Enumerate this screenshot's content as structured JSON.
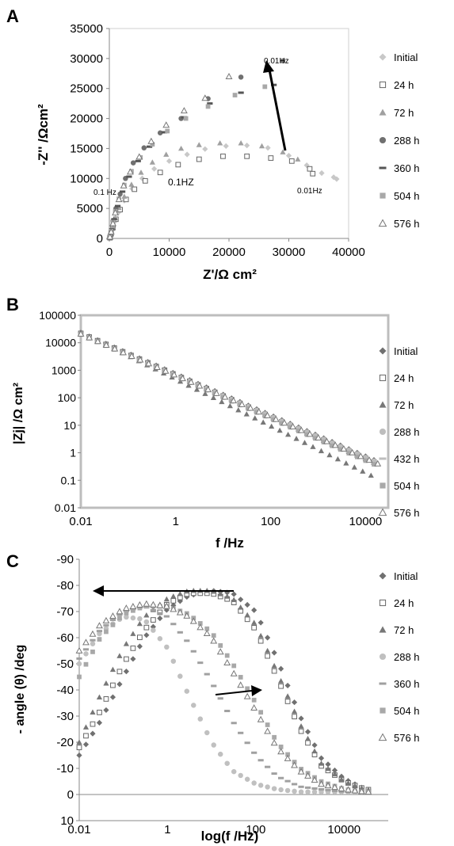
{
  "chart_data": [
    {
      "panel": "A",
      "type": "scatter",
      "xlabel": "Z'/Ω cm²",
      "ylabel": "-Z'' /Ωcm²",
      "xlim": [
        0,
        40000
      ],
      "ylim": [
        0,
        35000
      ],
      "x_ticks": [
        "0",
        "10000",
        "20000",
        "30000",
        "40000"
      ],
      "y_ticks": [
        "0",
        "5000",
        "10000",
        "15000",
        "20000",
        "25000",
        "30000",
        "35000"
      ],
      "grid": false,
      "legend": "right",
      "annotations": [
        "0.01Hz",
        "0.1 Hz",
        "0.1HZ",
        "0.01Hz"
      ],
      "series": [
        {
          "name": "Initial",
          "marker": "diamond-filled",
          "color": "#c8c8c8",
          "points": [
            [
              100,
              150
            ],
            [
              250,
              700
            ],
            [
              500,
              1600
            ],
            [
              900,
              2800
            ],
            [
              1500,
              4300
            ],
            [
              2500,
              6300
            ],
            [
              3800,
              8300
            ],
            [
              5500,
              10000
            ],
            [
              7500,
              11600
            ],
            [
              10000,
              12900
            ],
            [
              13000,
              14000
            ],
            [
              16000,
              14900
            ],
            [
              19500,
              15400
            ],
            [
              23000,
              15500
            ],
            [
              26500,
              15100
            ],
            [
              30000,
              13800
            ],
            [
              33000,
              12200
            ],
            [
              35500,
              10900
            ],
            [
              37500,
              10200
            ],
            [
              38000,
              9900
            ]
          ]
        },
        {
          "name": "24 h",
          "marker": "square-open",
          "color": "#666666",
          "points": [
            [
              100,
              120
            ],
            [
              300,
              800
            ],
            [
              600,
              1800
            ],
            [
              1100,
              3200
            ],
            [
              1800,
              4800
            ],
            [
              2800,
              6500
            ],
            [
              4200,
              8200
            ],
            [
              6000,
              9600
            ],
            [
              8500,
              11000
            ],
            [
              11500,
              12300
            ],
            [
              15000,
              13200
            ],
            [
              19000,
              13700
            ],
            [
              23000,
              13700
            ],
            [
              27000,
              13400
            ],
            [
              30500,
              12900
            ],
            [
              33500,
              11600
            ],
            [
              34000,
              10800
            ]
          ]
        },
        {
          "name": "72 h",
          "marker": "triangle-filled",
          "color": "#a0a0a0",
          "points": [
            [
              100,
              200
            ],
            [
              300,
              900
            ],
            [
              600,
              2000
            ],
            [
              1000,
              3400
            ],
            [
              1600,
              5100
            ],
            [
              2500,
              7000
            ],
            [
              3700,
              9000
            ],
            [
              5300,
              11000
            ],
            [
              7200,
              12700
            ],
            [
              9500,
              14000
            ],
            [
              12000,
              15000
            ],
            [
              15000,
              15600
            ],
            [
              18500,
              15900
            ],
            [
              22000,
              15900
            ],
            [
              25500,
              15400
            ],
            [
              29000,
              14400
            ],
            [
              31500,
              13200
            ]
          ]
        },
        {
          "name": "288 h",
          "marker": "circle-filled",
          "color": "#707070",
          "points": [
            [
              100,
              300
            ],
            [
              300,
              1300
            ],
            [
              600,
              2900
            ],
            [
              1100,
              5000
            ],
            [
              1800,
              7400
            ],
            [
              2700,
              10000
            ],
            [
              4000,
              12600
            ],
            [
              5800,
              15100
            ],
            [
              8500,
              17600
            ],
            [
              12000,
              20000
            ],
            [
              16500,
              23300
            ],
            [
              22000,
              26900
            ],
            [
              29000,
              29600
            ]
          ]
        },
        {
          "name": "360 h",
          "marker": "dash",
          "color": "#555555",
          "points": [
            [
              150,
              400
            ],
            [
              400,
              1500
            ],
            [
              800,
              3200
            ],
            [
              1400,
              5400
            ],
            [
              2200,
              7800
            ],
            [
              3300,
              10300
            ],
            [
              4800,
              12900
            ],
            [
              6700,
              15300
            ],
            [
              9200,
              17700
            ],
            [
              12500,
              20200
            ],
            [
              16800,
              22500
            ],
            [
              22000,
              24300
            ],
            [
              27500,
              25600
            ]
          ]
        },
        {
          "name": "504 h",
          "marker": "square-filled",
          "color": "#a8a8a8",
          "points": [
            [
              100,
              300
            ],
            [
              300,
              1200
            ],
            [
              600,
              2700
            ],
            [
              1000,
              4500
            ],
            [
              1600,
              6600
            ],
            [
              2500,
              8900
            ],
            [
              3700,
              11200
            ],
            [
              5200,
              13500
            ],
            [
              7200,
              15700
            ],
            [
              9700,
              17900
            ],
            [
              12800,
              20000
            ],
            [
              16500,
              22000
            ],
            [
              21000,
              23900
            ],
            [
              26000,
              25300
            ]
          ]
        },
        {
          "name": "576 h",
          "marker": "triangle-open",
          "color": "#777777",
          "points": [
            [
              100,
              250
            ],
            [
              300,
              1100
            ],
            [
              600,
              2500
            ],
            [
              1000,
              4300
            ],
            [
              1600,
              6500
            ],
            [
              2400,
              8800
            ],
            [
              3500,
              11100
            ],
            [
              5000,
              13600
            ],
            [
              7000,
              16200
            ],
            [
              9500,
              18900
            ],
            [
              12500,
              21300
            ],
            [
              16000,
              23400
            ],
            [
              20000,
              27000
            ]
          ]
        }
      ]
    },
    {
      "panel": "B",
      "type": "scatter",
      "xlabel": "f /Hz",
      "ylabel": "|Zj| /Ω cm²",
      "xscale": "log",
      "yscale": "log",
      "xlim": [
        0.01,
        30000
      ],
      "ylim": [
        0.01,
        100000
      ],
      "x_ticks": [
        "0.01",
        "1",
        "100",
        "10000"
      ],
      "y_ticks": [
        "0.01",
        "0.1",
        "1",
        "10",
        "100",
        "1000",
        "10000",
        "100000"
      ],
      "grid": false,
      "legend": "right",
      "series": [
        {
          "name": "Initial",
          "marker": "diamond-filled",
          "color": "#707070",
          "f_start": 0.01,
          "f_end": 15000,
          "z_start": 23000,
          "z_end": 0.55,
          "n": 36
        },
        {
          "name": "24 h",
          "marker": "square-open",
          "color": "#666666",
          "f_start": 0.01,
          "f_end": 15000,
          "z_start": 22000,
          "z_end": 0.45,
          "n": 36
        },
        {
          "name": "72 h",
          "marker": "triangle-filled",
          "color": "#777777",
          "f_start": 0.01,
          "f_end": 13000,
          "z_start": 24000,
          "z_end": 0.15,
          "n": 36
        },
        {
          "name": "288 h",
          "marker": "circle-filled",
          "color": "#bdbdbd",
          "f_start": 0.01,
          "f_end": 15000,
          "z_start": 21000,
          "z_end": 0.5,
          "n": 36
        },
        {
          "name": "432 h",
          "marker": "dash",
          "color": "#bdbdbd",
          "f_start": 0.01,
          "f_end": 15000,
          "z_start": 20000,
          "z_end": 0.42,
          "n": 36
        },
        {
          "name": "504 h",
          "marker": "square-filled",
          "color": "#a8a8a8",
          "f_start": 0.01,
          "f_end": 15000,
          "z_start": 20000,
          "z_end": 0.38,
          "n": 36
        },
        {
          "name": "576 h",
          "marker": "triangle-open",
          "color": "#777777",
          "f_start": 0.01,
          "f_end": 18000,
          "z_start": 21000,
          "z_end": 0.4,
          "n": 36
        }
      ]
    },
    {
      "panel": "C",
      "type": "scatter",
      "xlabel": "log(f /Hz)",
      "ylabel": "- angle (θ) /deg",
      "xscale": "log",
      "xlim": [
        0.01,
        100000
      ],
      "ylim": [
        10,
        -90
      ],
      "x_ticks": [
        "0.01",
        "1",
        "100",
        "10000"
      ],
      "y_ticks": [
        "-90",
        "-80",
        "-70",
        "-60",
        "-50",
        "-40",
        "-30",
        "-20",
        "-10",
        "0",
        "10"
      ],
      "grid": false,
      "legend": "right",
      "series": [
        {
          "name": "Initial",
          "marker": "diamond-filled",
          "color": "#707070",
          "curve": [
            [
              0.01,
              -15
            ],
            [
              0.03,
              -28
            ],
            [
              0.1,
              -45
            ],
            [
              0.3,
              -60
            ],
            [
              1,
              -71
            ],
            [
              3,
              -76
            ],
            [
              10,
              -78
            ],
            [
              30,
              -77
            ],
            [
              100,
              -70
            ],
            [
              300,
              -52
            ],
            [
              1000,
              -30
            ],
            [
              3000,
              -14
            ],
            [
              10000,
              -6
            ],
            [
              30000,
              -2
            ],
            [
              100000,
              -1
            ]
          ]
        },
        {
          "name": "24 h",
          "marker": "square-open",
          "color": "#666666",
          "curve": [
            [
              0.01,
              -18
            ],
            [
              0.03,
              -32
            ],
            [
              0.1,
              -50
            ],
            [
              0.3,
              -63
            ],
            [
              1,
              -73
            ],
            [
              3,
              -77
            ],
            [
              10,
              -77
            ],
            [
              30,
              -74
            ],
            [
              100,
              -63
            ],
            [
              300,
              -45
            ],
            [
              1000,
              -25
            ],
            [
              3000,
              -11
            ],
            [
              10000,
              -5
            ],
            [
              30000,
              -2
            ],
            [
              100000,
              -1
            ]
          ]
        },
        {
          "name": "72 h",
          "marker": "triangle-filled",
          "color": "#777777",
          "curve": [
            [
              0.01,
              -20
            ],
            [
              0.03,
              -38
            ],
            [
              0.1,
              -56
            ],
            [
              0.3,
              -68
            ],
            [
              1,
              -75
            ],
            [
              3,
              -78
            ],
            [
              10,
              -78
            ],
            [
              30,
              -75
            ],
            [
              100,
              -65
            ],
            [
              300,
              -47
            ],
            [
              1000,
              -27
            ],
            [
              3000,
              -12
            ],
            [
              10000,
              -5
            ],
            [
              30000,
              -2
            ],
            [
              100000,
              -1
            ]
          ]
        },
        {
          "name": "288 h",
          "marker": "circle-filled",
          "color": "#c0c0c0",
          "curve": [
            [
              0.01,
              -50
            ],
            [
              0.03,
              -62
            ],
            [
              0.1,
              -68
            ],
            [
              0.3,
              -67
            ],
            [
              1,
              -56
            ],
            [
              3,
              -38
            ],
            [
              10,
              -20
            ],
            [
              30,
              -9
            ],
            [
              100,
              -4
            ],
            [
              300,
              -2
            ],
            [
              1000,
              -1
            ],
            [
              3000,
              -1
            ],
            [
              10000,
              -1
            ],
            [
              30000,
              -1
            ],
            [
              100000,
              -1
            ]
          ]
        },
        {
          "name": "360 h",
          "marker": "dash",
          "color": "#a0a0a0",
          "curve": [
            [
              0.01,
              -52
            ],
            [
              0.03,
              -63
            ],
            [
              0.1,
              -70
            ],
            [
              0.3,
              -72
            ],
            [
              1,
              -68
            ],
            [
              3,
              -58
            ],
            [
              10,
              -43
            ],
            [
              30,
              -28
            ],
            [
              100,
              -15
            ],
            [
              300,
              -7
            ],
            [
              1000,
              -3
            ],
            [
              3000,
              -2
            ],
            [
              10000,
              -1
            ],
            [
              30000,
              -1
            ],
            [
              100000,
              -1
            ]
          ]
        },
        {
          "name": "504 h",
          "marker": "square-filled",
          "color": "#a8a8a8",
          "curve": [
            [
              0.01,
              -45
            ],
            [
              0.03,
              -60
            ],
            [
              0.1,
              -69
            ],
            [
              0.3,
              -72
            ],
            [
              1,
              -72
            ],
            [
              3,
              -69
            ],
            [
              10,
              -62
            ],
            [
              30,
              -50
            ],
            [
              100,
              -35
            ],
            [
              300,
              -20
            ],
            [
              1000,
              -10
            ],
            [
              3000,
              -5
            ],
            [
              10000,
              -2
            ],
            [
              30000,
              -1
            ],
            [
              100000,
              -1
            ]
          ]
        },
        {
          "name": "576 h",
          "marker": "triangle-open",
          "color": "#777777",
          "curve": [
            [
              0.01,
              -55
            ],
            [
              0.03,
              -65
            ],
            [
              0.1,
              -71
            ],
            [
              0.3,
              -73
            ],
            [
              1,
              -72
            ],
            [
              3,
              -68
            ],
            [
              10,
              -60
            ],
            [
              30,
              -47
            ],
            [
              100,
              -32
            ],
            [
              300,
              -18
            ],
            [
              1000,
              -9
            ],
            [
              3000,
              -4
            ],
            [
              10000,
              -2
            ],
            [
              30000,
              -1
            ],
            [
              100000,
              -1
            ]
          ]
        }
      ]
    }
  ],
  "panels": {
    "A": {
      "label": "A"
    },
    "B": {
      "label": "B"
    },
    "C": {
      "label": "C"
    }
  }
}
